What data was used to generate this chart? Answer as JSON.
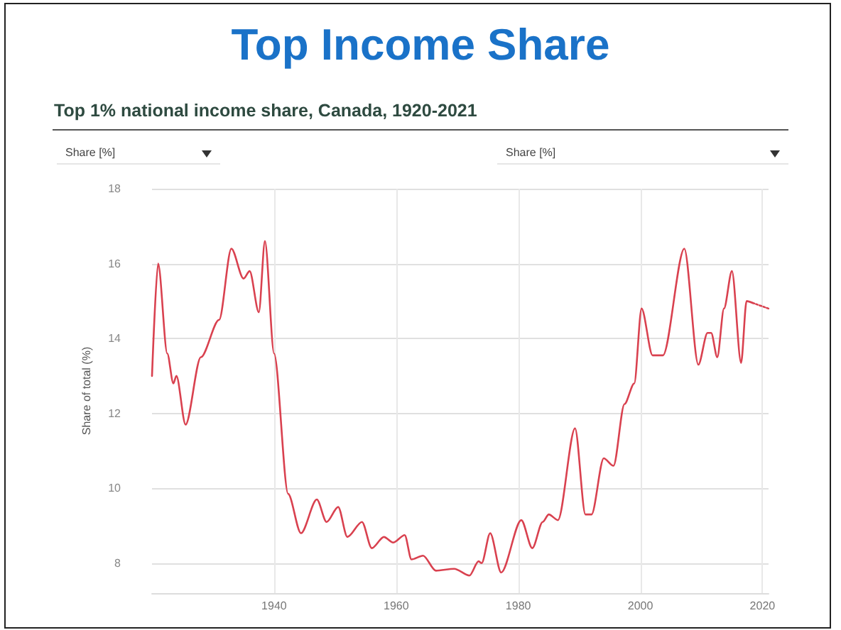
{
  "chart_data": {
    "type": "line",
    "title": "Top Income Share",
    "subtitle": "Top 1% national income share, Canada, 1920-2021",
    "ylabel": "Share of total (%)",
    "annotations": [
      "Share [%]",
      "Share [%]"
    ],
    "series": [
      {
        "color": "#d9414f",
        "line_style": "solid",
        "x": [
          1920,
          1921,
          1922.5,
          1923.5,
          1924,
          1925.5,
          1928,
          1931,
          1933,
          1935,
          1936,
          1937.5,
          1938.5,
          1940,
          1942.3,
          1944.4,
          1947,
          1948.6,
          1950.5,
          1952,
          1954.4,
          1956,
          1958,
          1959.5,
          1961.4,
          1962.5,
          1964.4,
          1966.5,
          1969.5,
          1972,
          1973.5,
          1974,
          1975.4,
          1977.2,
          1980.5,
          1982.3,
          1984,
          1985,
          1986.5,
          1989.3,
          1991,
          1992,
          1994,
          1995.6,
          1997.4,
          1999,
          2000.2,
          2002,
          2003.7,
          2007.2,
          2009.5,
          2011,
          2011.6,
          2012.6,
          2013.7,
          2015,
          2016.5,
          2017.4,
          2018.4
        ],
        "values": [
          13.0,
          16.0,
          13.6,
          12.8,
          13.0,
          11.7,
          13.5,
          14.5,
          16.4,
          15.6,
          15.8,
          14.7,
          16.6,
          13.6,
          9.85,
          8.8,
          9.7,
          9.1,
          9.5,
          8.7,
          9.1,
          8.4,
          8.7,
          8.55,
          8.75,
          8.1,
          8.2,
          7.8,
          7.85,
          7.67,
          8.05,
          8.0,
          8.8,
          7.75,
          9.15,
          8.4,
          9.1,
          9.3,
          9.15,
          11.6,
          9.3,
          9.3,
          10.8,
          10.6,
          12.25,
          12.8,
          14.8,
          13.55,
          13.55,
          16.4,
          13.3,
          14.15,
          14.15,
          13.5,
          14.8,
          15.8,
          13.35,
          15.0,
          14.95
        ]
      },
      {
        "color": "#d9414f",
        "line_style": "dotted",
        "x": [
          2018.4,
          2021
        ],
        "values": [
          14.95,
          14.8
        ]
      }
    ],
    "xlim": [
      1920,
      2021
    ],
    "xticks": [
      1940,
      1960,
      1980,
      2000,
      2020
    ],
    "ylim": [
      7.2,
      18
    ],
    "yticks": [
      8,
      10,
      12,
      14,
      16,
      18
    ],
    "grid": true,
    "marker": "none"
  }
}
